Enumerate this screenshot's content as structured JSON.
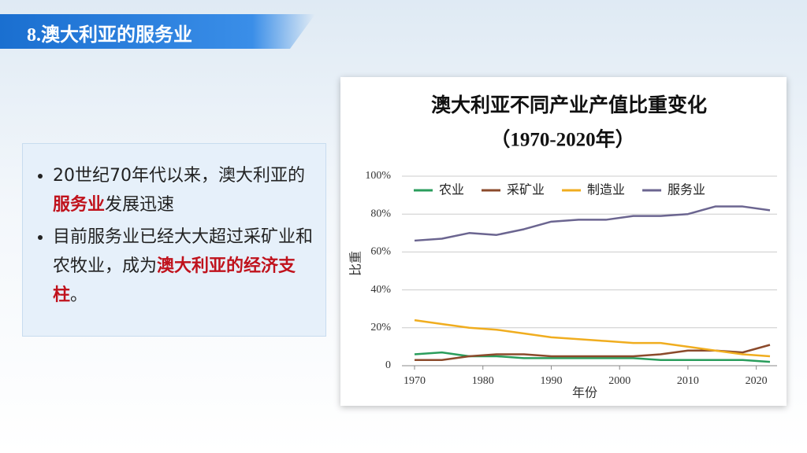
{
  "header": {
    "title": "8.澳大利亚的服务业"
  },
  "bullets": [
    {
      "before": "20世纪70年代以来，澳大利亚的",
      "highlight": "服务业",
      "after": "发展迅速"
    },
    {
      "before": "目前服务业已经大大超过采矿业和农牧业，成为",
      "highlight": "澳大利亚的经济支柱",
      "after": "。"
    }
  ],
  "chart_data": {
    "type": "line",
    "title": "澳大利亚不同产业产值比重变化",
    "subtitle": "（1970-2020年）",
    "x_label": "年份",
    "y_label": "比重",
    "x": [
      1970,
      1974,
      1978,
      1982,
      1986,
      1990,
      1994,
      1998,
      2002,
      2006,
      2010,
      2014,
      2018,
      2022
    ],
    "series": [
      {
        "name": "农业",
        "color": "#2a9d5c",
        "values": [
          6,
          7,
          5,
          5,
          4,
          4,
          4,
          4,
          4,
          3,
          3,
          3,
          3,
          2
        ]
      },
      {
        "name": "采矿业",
        "color": "#8b4a2b",
        "values": [
          3,
          3,
          5,
          6,
          6,
          5,
          5,
          5,
          5,
          6,
          8,
          8,
          7,
          11
        ]
      },
      {
        "name": "制造业",
        "color": "#f0ad1f",
        "values": [
          24,
          22,
          20,
          19,
          17,
          15,
          14,
          13,
          12,
          12,
          10,
          8,
          6,
          5
        ]
      },
      {
        "name": "服务业",
        "color": "#6b6590",
        "values": [
          66,
          67,
          70,
          69,
          72,
          76,
          77,
          77,
          79,
          79,
          80,
          84,
          84,
          82
        ]
      }
    ],
    "xlim": [
      1967,
      2023.5
    ],
    "ylim": [
      0,
      100
    ],
    "xticks": [
      1970,
      1980,
      1990,
      2000,
      2010,
      2020
    ],
    "yticks": [
      0,
      {
        "value": 20,
        "label": "20%"
      },
      {
        "value": 40,
        "label": "40%"
      },
      {
        "value": 60,
        "label": "60%"
      },
      {
        "value": 80,
        "label": "80%"
      },
      {
        "value": 100,
        "label": "100%"
      }
    ],
    "grid": true,
    "legend": "top"
  }
}
